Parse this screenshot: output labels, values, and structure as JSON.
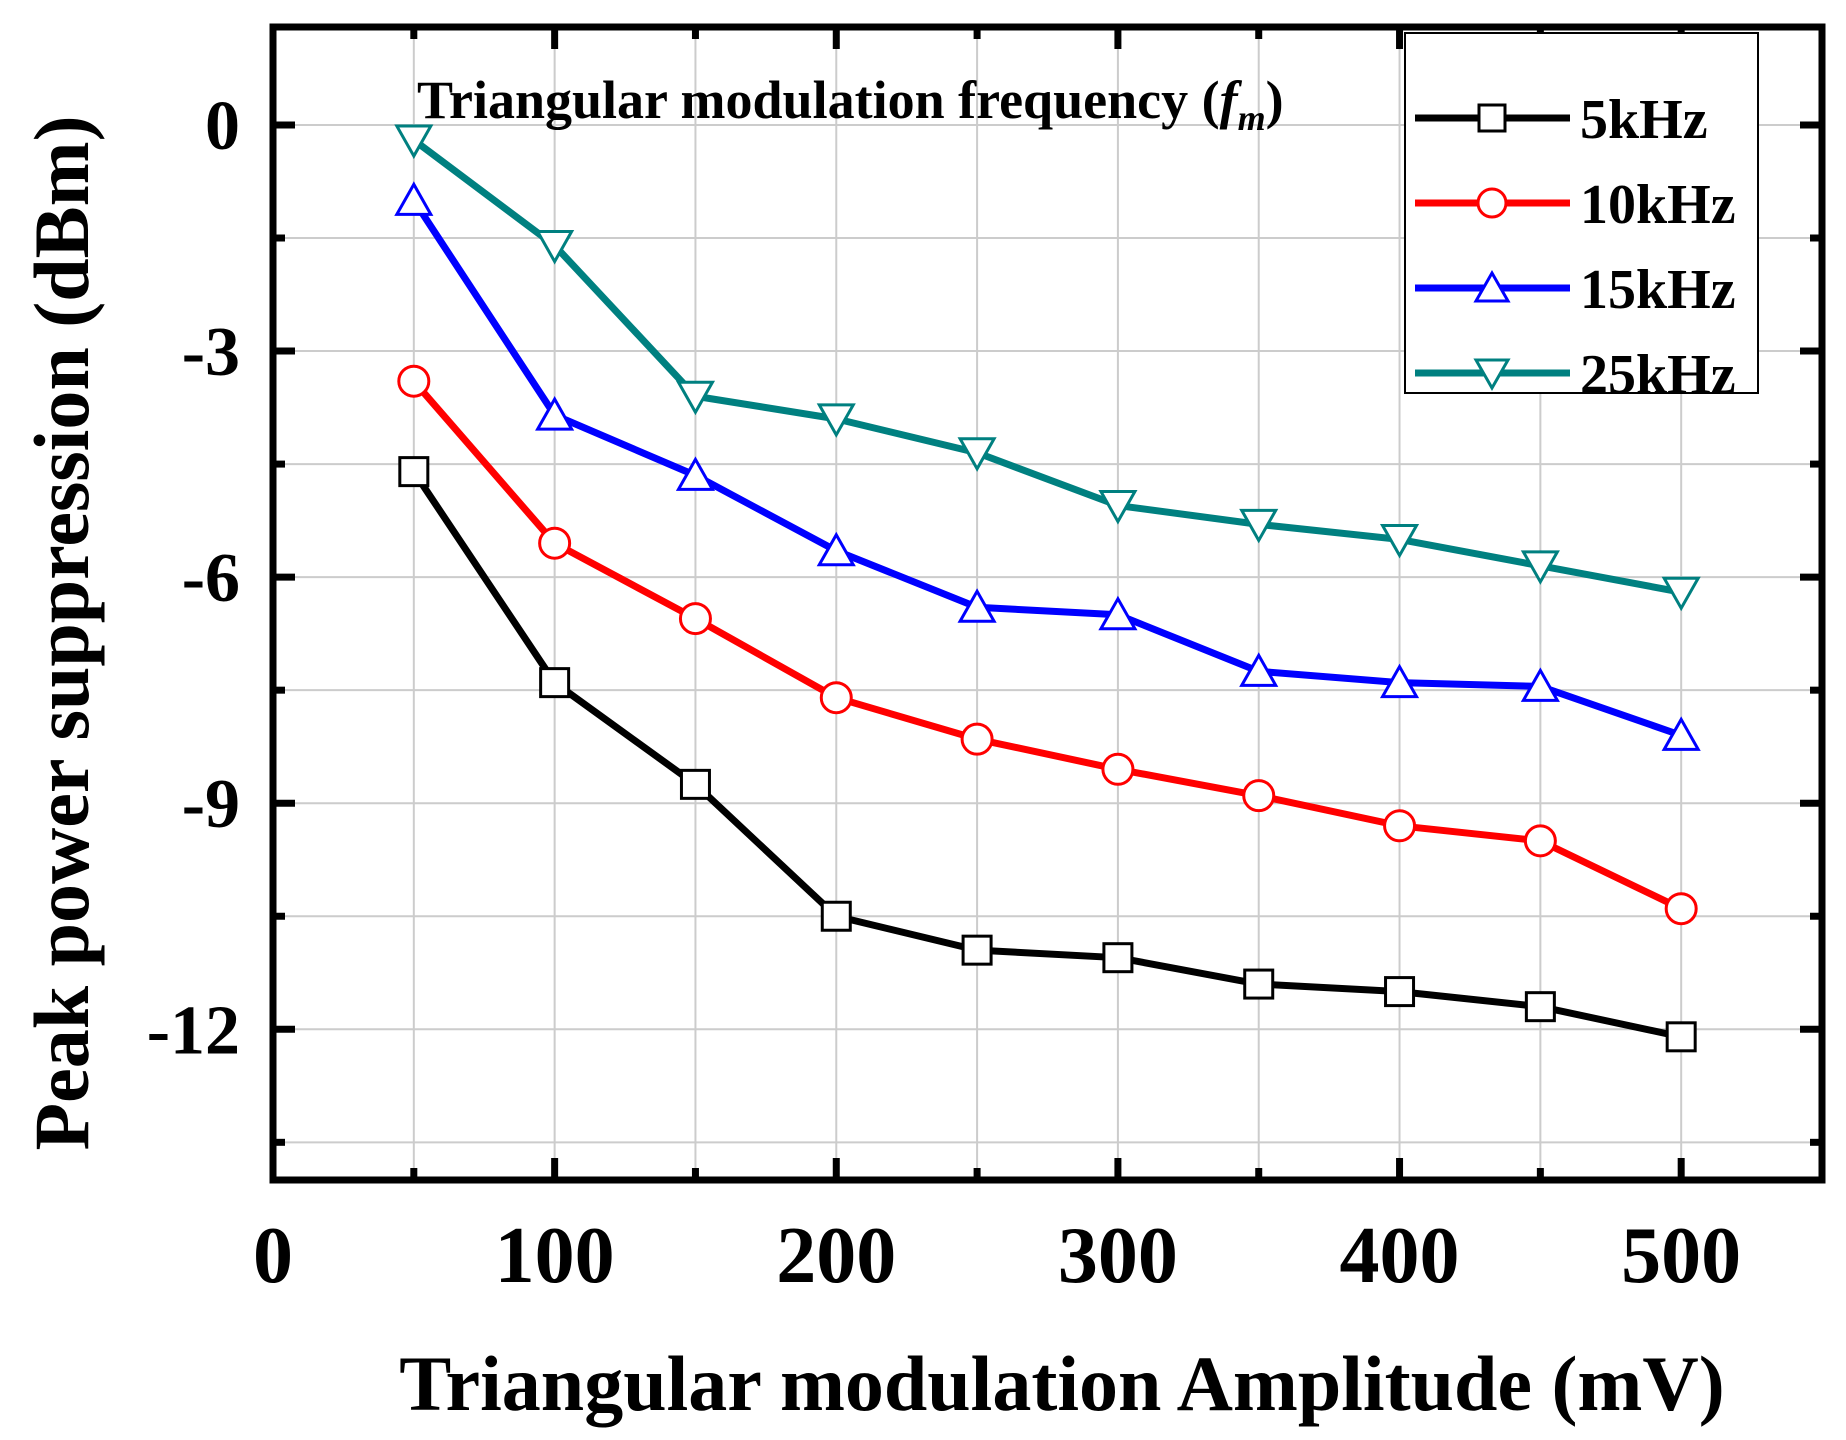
{
  "chart_data": {
    "type": "line",
    "title": "",
    "xlabel": "Triangular modulation Amplitude (mV)",
    "ylabel": "Peak power suppression (dBm)",
    "xlim": [
      0,
      550
    ],
    "ylim": [
      -14,
      1.3
    ],
    "xticks": [
      0,
      100,
      200,
      300,
      400,
      500
    ],
    "xtick_labels": [
      "0",
      "100",
      "200",
      "300",
      "400",
      "500"
    ],
    "yticks": [
      0,
      -3,
      -6,
      -9,
      -12
    ],
    "ytick_labels": [
      "0",
      "-3",
      "-6",
      "-9",
      "-12"
    ],
    "grid": true,
    "legend_position": "top-right",
    "annotation": {
      "text": "Triangular modulation frequency (",
      "symbol": "f",
      "subscript": "m",
      "close": ")"
    },
    "x": [
      50,
      100,
      150,
      200,
      250,
      300,
      350,
      400,
      450,
      500
    ],
    "series": [
      {
        "name": "5kHz",
        "color": "#000000",
        "marker": "square",
        "values": [
          -4.6,
          -7.4,
          -8.75,
          -10.5,
          -10.95,
          -11.05,
          -11.4,
          -11.5,
          -11.7,
          -12.1
        ]
      },
      {
        "name": "10kHz",
        "color": "#ff0000",
        "marker": "circle",
        "values": [
          -3.4,
          -5.55,
          -6.55,
          -7.6,
          -8.15,
          -8.55,
          -8.9,
          -9.3,
          -9.5,
          -10.4
        ]
      },
      {
        "name": "15kHz",
        "color": "#0000ff",
        "marker": "triangle-up",
        "values": [
          -1.0,
          -3.85,
          -4.65,
          -5.65,
          -6.4,
          -6.5,
          -7.25,
          -7.4,
          -7.45,
          -8.1
        ]
      },
      {
        "name": "25kHz",
        "color": "#008080",
        "marker": "triangle-down",
        "values": [
          -0.2,
          -1.6,
          -3.6,
          -3.9,
          -4.35,
          -5.05,
          -5.3,
          -5.5,
          -5.85,
          -6.2
        ]
      }
    ]
  }
}
